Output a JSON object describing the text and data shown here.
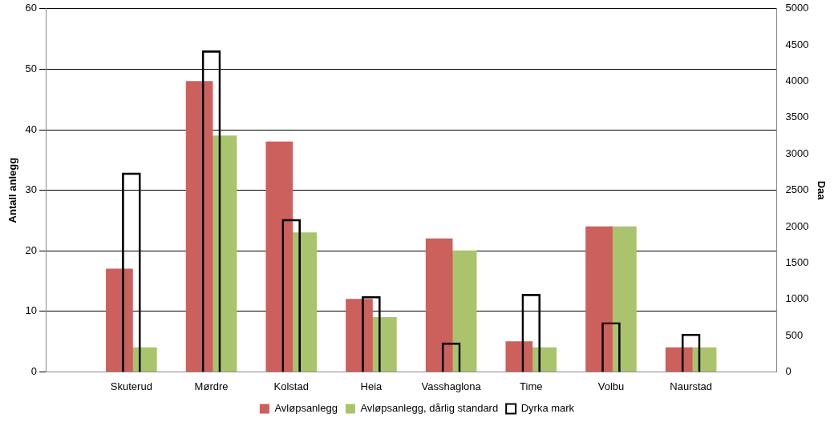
{
  "chart_data": {
    "type": "bar",
    "ylabel": "Antall anlegg",
    "y2label": "Daa",
    "categories": [
      "Skuterud",
      "Mørdre",
      "Kolstad",
      "Heia",
      "Vasshaglona",
      "Time",
      "Volbu",
      "Naurstad"
    ],
    "series": [
      {
        "name": "Avløpsanlegg",
        "color": "#cc605c",
        "values": [
          17,
          48,
          38,
          12,
          22,
          5,
          24,
          4
        ]
      },
      {
        "name": "Avløpsanlegg, dårlig standard",
        "color": "#a9c46c",
        "values": [
          4,
          39,
          23,
          9,
          20,
          4,
          24,
          4
        ]
      },
      {
        "name": "Dyrka mark",
        "color": "#000000",
        "axis": "y2",
        "values": [
          2740,
          4420,
          2100,
          1040,
          400,
          1070,
          680,
          520
        ]
      }
    ],
    "ylim": [
      0,
      60
    ],
    "yticks": [
      0,
      10,
      20,
      30,
      40,
      50,
      60
    ],
    "y2lim": [
      0,
      5000
    ],
    "y2ticks": [
      0,
      500,
      1000,
      1500,
      2000,
      2500,
      3000,
      3500,
      4000,
      4500,
      5000
    ],
    "grid": "y",
    "legend": "bottom"
  }
}
